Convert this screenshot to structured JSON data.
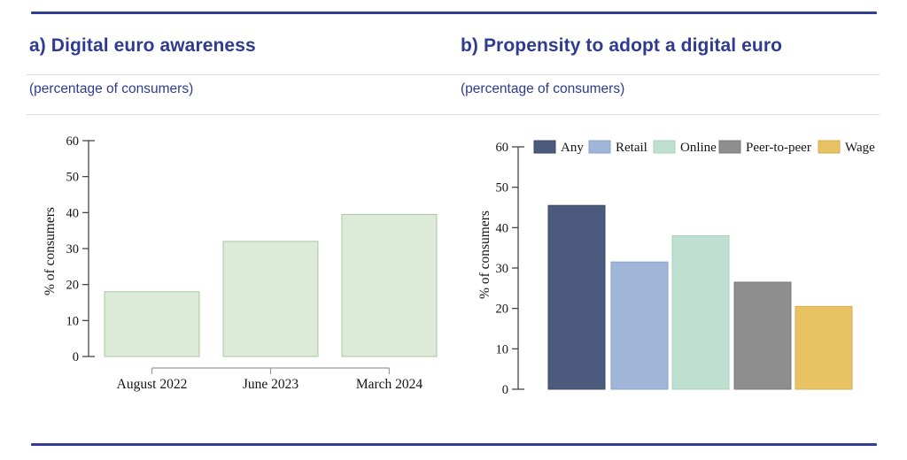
{
  "figure": {
    "accent_color": "#323e92",
    "title_color": "#2f3b8f",
    "divider_color": "#dcdcdc",
    "background": "#ffffff"
  },
  "panels": [
    {
      "title": "a) Digital euro awareness",
      "subtitle": "(percentage of consumers)"
    },
    {
      "title": "b) Propensity to adopt a digital euro",
      "subtitle": "(percentage of consumers)"
    }
  ],
  "chart_data": [
    {
      "type": "bar",
      "title": "a) Digital euro awareness",
      "subtitle": "(percentage of consumers)",
      "categories": [
        "August 2022",
        "June 2023",
        "March 2024"
      ],
      "values": [
        18,
        32,
        39.5
      ],
      "xlabel": "",
      "ylabel": "% of consumers",
      "ylim": [
        0,
        60
      ],
      "yticks": [
        0,
        10,
        20,
        30,
        40,
        50,
        60
      ],
      "grid": false,
      "legend": false,
      "bar_color": "#dcead7",
      "bar_border_color": "#a9c7a1"
    },
    {
      "type": "bar",
      "title": "b) Propensity to adopt a digital euro",
      "subtitle": "(percentage of consumers)",
      "categories": [
        "Any",
        "Retail",
        "Online",
        "Peer-to-peer",
        "Wage"
      ],
      "values": [
        45.5,
        31.5,
        38,
        26.5,
        20.5
      ],
      "xlabel": "",
      "ylabel": "% of consumers",
      "ylim": [
        0,
        60
      ],
      "yticks": [
        0,
        10,
        20,
        30,
        40,
        50,
        60
      ],
      "grid": false,
      "legend_position": "top",
      "series_colors": [
        "#4b5a7d",
        "#a0b6d8",
        "#bfe0d1",
        "#8e8e8e",
        "#e8c364"
      ],
      "series_border_colors": [
        "#3d4a68",
        "#8ba3c6",
        "#a7d0be",
        "#7b7b7b",
        "#d3ae51"
      ]
    }
  ]
}
